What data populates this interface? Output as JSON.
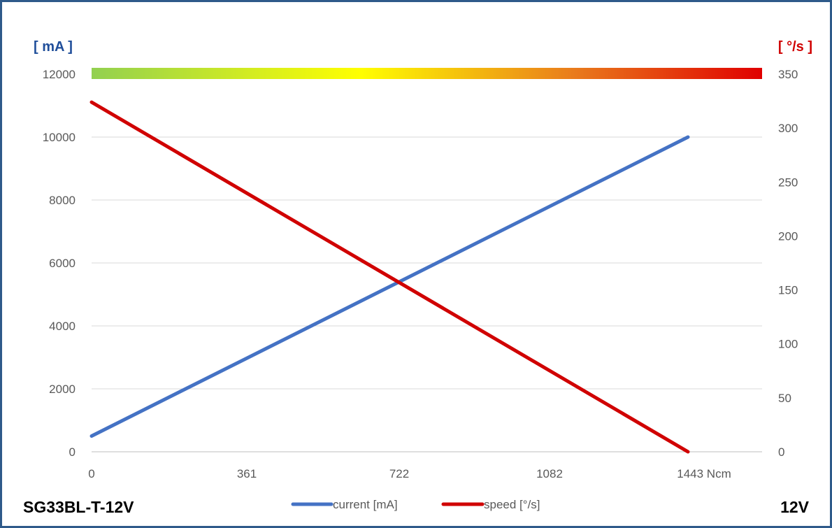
{
  "chart_data": {
    "type": "line",
    "model_label": "SG33BL-T-12V",
    "voltage_label": "12V",
    "x_ticks": [
      "0",
      "361",
      "722",
      "1082",
      "1443 Ncm"
    ],
    "xlim": [
      0,
      1600
    ],
    "left_axis": {
      "unit_label": "[ mA ]",
      "ylim": [
        0,
        12000
      ],
      "ticks": [
        0,
        2000,
        4000,
        6000,
        8000,
        10000,
        12000
      ]
    },
    "right_axis": {
      "unit_label": "[ °/s ]",
      "ylim": [
        0,
        350
      ],
      "ticks": [
        0,
        50,
        100,
        150,
        200,
        250,
        300,
        350
      ]
    },
    "series": [
      {
        "name": "current [mA]",
        "axis": "left",
        "color": "#4472c4",
        "x": [
          0,
          1600
        ],
        "y": [
          500,
          10000
        ]
      },
      {
        "name": "speed [°/s]",
        "axis": "right",
        "color": "#d00000",
        "x": [
          0,
          1600
        ],
        "y": [
          324,
          0
        ]
      }
    ],
    "grid": true,
    "legend_position": "bottom-center",
    "speed_band": {
      "colors": [
        "#92d050",
        "#ffff00",
        "#e97b1c",
        "#e00000"
      ]
    }
  }
}
